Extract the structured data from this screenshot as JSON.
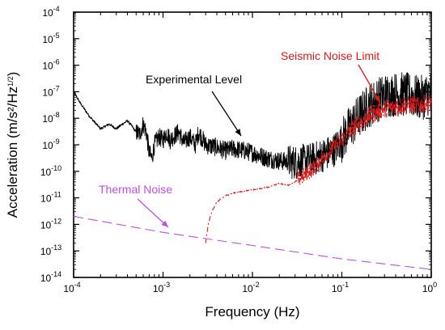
{
  "chart_data": {
    "type": "line",
    "x_scale": "log",
    "y_scale": "log",
    "xlim": [
      0.0001,
      1
    ],
    "ylim": [
      1e-14,
      0.0001
    ],
    "xlabel": "Frequency (Hz)",
    "ylabel": "Acceleration (m/s²/Hz",
    "ylabel_exponent": "1/2",
    "ylabel_close": ")",
    "x_ticks": [
      {
        "value": 0.0001,
        "base": "10",
        "exp": "-4"
      },
      {
        "value": 0.001,
        "base": "10",
        "exp": "-3"
      },
      {
        "value": 0.01,
        "base": "10",
        "exp": "-2"
      },
      {
        "value": 0.1,
        "base": "10",
        "exp": "-1"
      },
      {
        "value": 1,
        "base": "10",
        "exp": "0"
      }
    ],
    "y_ticks": [
      {
        "value": 1e-14,
        "base": "10",
        "exp": "-14"
      },
      {
        "value": 1e-13,
        "base": "10",
        "exp": "-13"
      },
      {
        "value": 1e-12,
        "base": "10",
        "exp": "-12"
      },
      {
        "value": 1e-11,
        "base": "10",
        "exp": "-11"
      },
      {
        "value": 1e-10,
        "base": "10",
        "exp": "-10"
      },
      {
        "value": 1e-09,
        "base": "10",
        "exp": "-9"
      },
      {
        "value": 1e-08,
        "base": "10",
        "exp": "-8"
      },
      {
        "value": 1e-07,
        "base": "10",
        "exp": "-7"
      },
      {
        "value": 1e-06,
        "base": "10",
        "exp": "-6"
      },
      {
        "value": 1e-05,
        "base": "10",
        "exp": "-5"
      },
      {
        "value": 0.0001,
        "base": "10",
        "exp": "-4"
      }
    ],
    "grid": false,
    "series": [
      {
        "name": "Experimental Level",
        "color": "#000000",
        "style": "solid",
        "points": [
          [
            0.0001,
            1e-07
          ],
          [
            0.00012,
            3.5e-08
          ],
          [
            0.00015,
            1.2e-08
          ],
          [
            0.0002,
            4e-09
          ],
          [
            0.00025,
            6e-09
          ],
          [
            0.0003,
            4e-09
          ],
          [
            0.00035,
            6e-09
          ],
          [
            0.0004,
            8e-09
          ],
          [
            0.00045,
            5e-09
          ],
          [
            0.0005,
            3e-09
          ],
          [
            0.00055,
            2.5e-09
          ],
          [
            0.0006,
            6e-09
          ],
          [
            0.00065,
            3e-09
          ],
          [
            0.0007,
            5e-10
          ],
          [
            0.00075,
            3e-10
          ],
          [
            0.0008,
            1e-09
          ],
          [
            0.0009,
            2e-09
          ],
          [
            0.001,
            1.5e-09
          ],
          [
            0.0011,
            3e-09
          ],
          [
            0.0012,
            1.5e-09
          ],
          [
            0.0013,
            2e-09
          ],
          [
            0.0015,
            3e-09
          ],
          [
            0.0017,
            1.2e-09
          ],
          [
            0.002,
            2e-09
          ],
          [
            0.0023,
            1e-09
          ],
          [
            0.0025,
            3e-09
          ],
          [
            0.003,
            1e-09
          ],
          [
            0.004,
            8e-10
          ],
          [
            0.005,
            6e-10
          ],
          [
            0.006,
            7e-10
          ],
          [
            0.008,
            6e-10
          ],
          [
            0.01,
            5e-10
          ],
          [
            0.015,
            3e-10
          ],
          [
            0.02,
            2.5e-10
          ],
          [
            0.03,
            2.2e-10
          ],
          [
            0.04,
            2.5e-10
          ],
          [
            0.05,
            3e-10
          ],
          [
            0.06,
            4e-10
          ],
          [
            0.08,
            6e-10
          ],
          [
            0.1,
            1.5e-09
          ],
          [
            0.12,
            4e-09
          ],
          [
            0.15,
            1e-08
          ],
          [
            0.2,
            3e-08
          ],
          [
            0.25,
            5e-08
          ],
          [
            0.3,
            7e-08
          ],
          [
            0.4,
            8e-08
          ],
          [
            0.5,
            8e-08
          ],
          [
            0.6,
            7e-08
          ],
          [
            0.7,
            6e-08
          ],
          [
            0.8,
            6e-08
          ],
          [
            0.9,
            8e-08
          ],
          [
            1.0,
            1e-07
          ]
        ]
      },
      {
        "name": "Seismic Noise Limit",
        "color": "#dd1a1a",
        "style": "dash-dot",
        "points": [
          [
            0.003,
            2e-13
          ],
          [
            0.0032,
            1e-12
          ],
          [
            0.0035,
            3e-12
          ],
          [
            0.004,
            7e-12
          ],
          [
            0.005,
            1.2e-11
          ],
          [
            0.006,
            1.5e-11
          ],
          [
            0.008,
            1.8e-11
          ],
          [
            0.01,
            2e-11
          ],
          [
            0.015,
            2.5e-11
          ],
          [
            0.02,
            3.5e-11
          ],
          [
            0.025,
            3e-11
          ],
          [
            0.03,
            4e-11
          ],
          [
            0.04,
            8e-11
          ],
          [
            0.05,
            1.5e-10
          ],
          [
            0.06,
            3e-10
          ],
          [
            0.08,
            8e-10
          ],
          [
            0.1,
            1.5e-09
          ],
          [
            0.12,
            3e-09
          ],
          [
            0.15,
            6e-09
          ],
          [
            0.2,
            1.2e-08
          ],
          [
            0.25,
            1.8e-08
          ],
          [
            0.3,
            2.2e-08
          ],
          [
            0.4,
            2.8e-08
          ],
          [
            0.5,
            3e-08
          ],
          [
            0.6,
            3.2e-08
          ],
          [
            0.7,
            3e-08
          ],
          [
            0.8,
            3.3e-08
          ],
          [
            0.9,
            3.5e-08
          ],
          [
            1.0,
            4e-08
          ]
        ]
      },
      {
        "name": "Thermal Noise",
        "color": "#c04ee0",
        "style": "dashed",
        "points": [
          [
            0.0001,
            2e-12
          ],
          [
            0.001,
            5e-13
          ],
          [
            0.01,
            1.6e-13
          ],
          [
            0.1,
            5e-14
          ],
          [
            1.0,
            2e-14
          ]
        ]
      }
    ],
    "annotations": [
      {
        "text": "Experimental Level",
        "color": "#000000"
      },
      {
        "text": "Seismic Noise Limit",
        "color": "#dd1a1a"
      },
      {
        "text": "Thermal Noise",
        "color": "#c04ee0"
      }
    ]
  }
}
